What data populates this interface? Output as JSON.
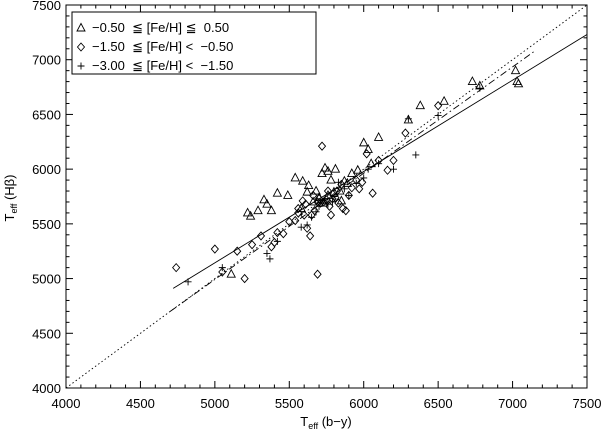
{
  "chart_data": {
    "type": "scatter",
    "xlabel": {
      "main": "T",
      "sub": "eff",
      "rest": " (b−y)"
    },
    "ylabel": {
      "main": "T",
      "sub": "eff",
      "rest": " (Hβ)"
    },
    "xlim": [
      4000,
      7500
    ],
    "ylim": [
      4000,
      7500
    ],
    "xticks": [
      "4000",
      "4500",
      "5000",
      "5500",
      "6000",
      "6500",
      "7000",
      "7500"
    ],
    "yticks": [
      "4000",
      "4500",
      "5000",
      "5500",
      "6000",
      "6500",
      "7000",
      "7500"
    ],
    "grid": false,
    "legend_position": "top-left",
    "series": [
      {
        "name": "−0.50  ≦ [Fe/H] ≦  0.50",
        "marker": "triangle",
        "points": [
          [
            5110,
            5040
          ],
          [
            5220,
            5600
          ],
          [
            5240,
            5570
          ],
          [
            5290,
            5620
          ],
          [
            5330,
            5720
          ],
          [
            5350,
            5680
          ],
          [
            5380,
            5620
          ],
          [
            5420,
            5780
          ],
          [
            5490,
            5760
          ],
          [
            5540,
            5920
          ],
          [
            5590,
            5890
          ],
          [
            5630,
            5850
          ],
          [
            5680,
            5800
          ],
          [
            5720,
            5960
          ],
          [
            5740,
            6010
          ],
          [
            5760,
            5980
          ],
          [
            5780,
            5900
          ],
          [
            5810,
            6000
          ],
          [
            5840,
            5800
          ],
          [
            5870,
            5890
          ],
          [
            5890,
            5870
          ],
          [
            5920,
            5960
          ],
          [
            5960,
            5990
          ],
          [
            6000,
            6240
          ],
          [
            6030,
            6180
          ],
          [
            6050,
            6050
          ],
          [
            6100,
            6290
          ],
          [
            6300,
            6450
          ],
          [
            6380,
            6580
          ],
          [
            6540,
            6620
          ],
          [
            6730,
            6800
          ],
          [
            6780,
            6760
          ],
          [
            7020,
            6900
          ],
          [
            7030,
            6800
          ],
          [
            7040,
            6780
          ],
          [
            5620,
            5790
          ],
          [
            5660,
            5700
          ],
          [
            5700,
            5740
          ],
          [
            5730,
            5690
          ],
          [
            5760,
            5760
          ],
          [
            5800,
            5790
          ],
          [
            5850,
            5710
          ],
          [
            5580,
            5640
          ]
        ]
      },
      {
        "name": "−1.50  ≦ [Fe/H] <  −0.50",
        "marker": "diamond",
        "points": [
          [
            4740,
            5100
          ],
          [
            5000,
            5270
          ],
          [
            5050,
            5060
          ],
          [
            5150,
            5250
          ],
          [
            5200,
            5000
          ],
          [
            5250,
            5310
          ],
          [
            5310,
            5390
          ],
          [
            5380,
            5290
          ],
          [
            5400,
            5330
          ],
          [
            5420,
            5420
          ],
          [
            5460,
            5410
          ],
          [
            5500,
            5520
          ],
          [
            5540,
            5530
          ],
          [
            5560,
            5640
          ],
          [
            5590,
            5710
          ],
          [
            5610,
            5680
          ],
          [
            5620,
            5460
          ],
          [
            5640,
            5390
          ],
          [
            5650,
            5580
          ],
          [
            5670,
            5620
          ],
          [
            5690,
            5040
          ],
          [
            5690,
            5700
          ],
          [
            5700,
            5730
          ],
          [
            5710,
            5690
          ],
          [
            5720,
            6210
          ],
          [
            5730,
            5700
          ],
          [
            5750,
            5720
          ],
          [
            5760,
            5800
          ],
          [
            5770,
            5660
          ],
          [
            5790,
            5730
          ],
          [
            5810,
            5740
          ],
          [
            5830,
            5690
          ],
          [
            5850,
            5860
          ],
          [
            5860,
            5640
          ],
          [
            5880,
            5620
          ],
          [
            5900,
            5760
          ],
          [
            5920,
            5830
          ],
          [
            5950,
            5900
          ],
          [
            5970,
            5820
          ],
          [
            5990,
            5880
          ],
          [
            6020,
            6140
          ],
          [
            6060,
            5780
          ],
          [
            6100,
            6080
          ],
          [
            6160,
            5990
          ],
          [
            6200,
            6080
          ],
          [
            6280,
            6330
          ],
          [
            6500,
            6580
          ],
          [
            5780,
            5580
          ],
          [
            5820,
            5800
          ],
          [
            5560,
            5600
          ],
          [
            5600,
            5580
          ],
          [
            5660,
            5760
          ]
        ]
      },
      {
        "name": "−3.00  ≦ [Fe/H] <  −1.50",
        "marker": "plus",
        "points": [
          [
            4820,
            4970
          ],
          [
            5050,
            5100
          ],
          [
            5350,
            5230
          ],
          [
            5370,
            5180
          ],
          [
            5420,
            5340
          ],
          [
            5580,
            5470
          ],
          [
            5620,
            5490
          ],
          [
            5650,
            5560
          ],
          [
            5680,
            5610
          ],
          [
            5700,
            5660
          ],
          [
            5720,
            5690
          ],
          [
            5740,
            5720
          ],
          [
            5760,
            5680
          ],
          [
            5800,
            5750
          ],
          [
            5830,
            5880
          ],
          [
            5900,
            5760
          ],
          [
            5950,
            5870
          ],
          [
            6000,
            5920
          ],
          [
            6030,
            6000
          ],
          [
            6100,
            6050
          ],
          [
            6200,
            6000
          ],
          [
            6300,
            6460
          ],
          [
            6350,
            6130
          ],
          [
            6500,
            6490
          ],
          [
            6780,
            6740
          ],
          [
            5790,
            5700
          ],
          [
            5870,
            5820
          ]
        ]
      }
    ],
    "lines": [
      {
        "style": "solid",
        "from": [
          4720,
          4910
        ],
        "to": [
          7500,
          7230
        ]
      },
      {
        "style": "dashdot",
        "from": [
          4700,
          4700
        ],
        "to": [
          7150,
          7080
        ]
      },
      {
        "style": "dotted",
        "from": [
          4000,
          4000
        ],
        "to": [
          7500,
          7500
        ]
      }
    ]
  }
}
